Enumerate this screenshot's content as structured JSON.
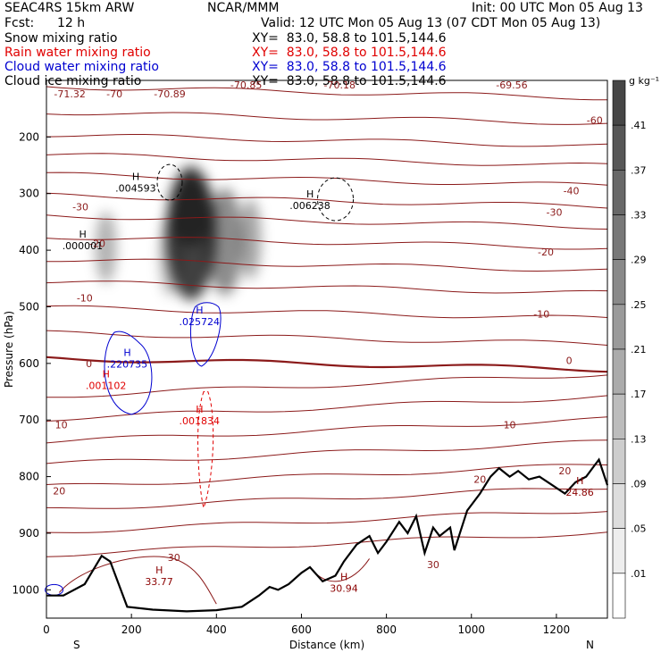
{
  "header": {
    "model": "SEAC4RS 15km ARW",
    "org": "NCAR/MMM",
    "init": "Init: 00 UTC Mon 05 Aug 13",
    "fcst_label": "Fcst:",
    "fcst_value": "12 h",
    "valid": "Valid: 12 UTC Mon 05 Aug 13 (07 CDT Mon 05 Aug 13)",
    "fields": [
      {
        "name": "Snow mixing ratio",
        "color": "#000000"
      },
      {
        "name": "Rain water mixing ratio",
        "color": "#e00000"
      },
      {
        "name": "Cloud water mixing ratio",
        "color": "#0000d0"
      },
      {
        "name": "Cloud ice mixing ratio",
        "color": "#000000"
      }
    ],
    "xy": "XY=  83.0, 58.8 to 101.5,144.6"
  },
  "chart_data": {
    "type": "cross-section",
    "xlabel": "Distance (km)",
    "ylabel": "Pressure (hPa)",
    "xlim": [
      0,
      1320
    ],
    "ylim": [
      1050,
      100
    ],
    "xticks": [
      0,
      200,
      400,
      600,
      800,
      1000,
      1200
    ],
    "yticks": [
      200,
      300,
      400,
      500,
      600,
      700,
      800,
      900,
      1000
    ],
    "x_end_labels": {
      "left": "S",
      "right": "N"
    },
    "colorbar": {
      "unit": "g kg⁻¹",
      "levels": [
        ".41",
        ".37",
        ".33",
        ".29",
        ".25",
        ".21",
        ".17",
        ".13",
        ".09",
        ".05",
        ".01"
      ]
    },
    "temperature_labels": [
      {
        "text": "-71.32",
        "x": 55,
        "p": 124
      },
      {
        "text": "-70",
        "x": 160,
        "p": 124
      },
      {
        "text": "-70.89",
        "x": 290,
        "p": 124
      },
      {
        "text": "-70.85",
        "x": 470,
        "p": 108
      },
      {
        "text": "-70.18",
        "x": 690,
        "p": 108
      },
      {
        "text": "-69.56",
        "x": 1095,
        "p": 108
      },
      {
        "text": "-60",
        "x": 1290,
        "p": 170
      },
      {
        "text": "-40",
        "x": 1235,
        "p": 295
      },
      {
        "text": "-30",
        "x": 80,
        "p": 323
      },
      {
        "text": "-30",
        "x": 1195,
        "p": 333
      },
      {
        "text": "-20",
        "x": 120,
        "p": 388
      },
      {
        "text": "-20",
        "x": 1175,
        "p": 403
      },
      {
        "text": "-10",
        "x": 90,
        "p": 484
      },
      {
        "text": "-10",
        "x": 1165,
        "p": 513
      },
      {
        "text": "0",
        "x": 100,
        "p": 600
      },
      {
        "text": "0",
        "x": 1230,
        "p": 595
      },
      {
        "text": "10",
        "x": 35,
        "p": 708
      },
      {
        "text": "10",
        "x": 1090,
        "p": 708
      },
      {
        "text": "20",
        "x": 30,
        "p": 825
      },
      {
        "text": "20",
        "x": 1020,
        "p": 805
      },
      {
        "text": "20",
        "x": 1220,
        "p": 790
      },
      {
        "text": "30",
        "x": 300,
        "p": 943
      },
      {
        "text": "30",
        "x": 910,
        "p": 955
      }
    ],
    "extrema": [
      {
        "text": ".004593",
        "x": 210,
        "p": 298,
        "color": "#000000"
      },
      {
        "text": ".006238",
        "x": 620,
        "p": 329,
        "color": "#000000"
      },
      {
        "text": ".000001",
        "x": 85,
        "p": 400,
        "color": "#000000"
      },
      {
        "text": ".025724",
        "x": 360,
        "p": 534,
        "color": "#0000d0"
      },
      {
        "text": ".220735",
        "x": 190,
        "p": 609,
        "color": "#0000d0"
      },
      {
        "text": ".001102",
        "x": 140,
        "p": 647,
        "color": "#e00000"
      },
      {
        "text": ".001834",
        "x": 360,
        "p": 709,
        "color": "#e00000"
      },
      {
        "text": "33.77",
        "x": 265,
        "p": 993,
        "color": "#8b0000"
      },
      {
        "text": "30.94",
        "x": 700,
        "p": 1005,
        "color": "#8b0000"
      },
      {
        "text": "24.86",
        "x": 1255,
        "p": 835,
        "color": "#8b0000"
      }
    ],
    "terrain": [
      [
        0,
        1010
      ],
      [
        40,
        1010
      ],
      [
        90,
        990
      ],
      [
        130,
        940
      ],
      [
        150,
        950
      ],
      [
        190,
        1030
      ],
      [
        250,
        1035
      ],
      [
        330,
        1038
      ],
      [
        400,
        1036
      ],
      [
        460,
        1030
      ],
      [
        500,
        1010
      ],
      [
        525,
        995
      ],
      [
        545,
        1000
      ],
      [
        570,
        990
      ],
      [
        600,
        970
      ],
      [
        620,
        960
      ],
      [
        650,
        985
      ],
      [
        680,
        975
      ],
      [
        700,
        950
      ],
      [
        730,
        920
      ],
      [
        760,
        905
      ],
      [
        780,
        935
      ],
      [
        800,
        915
      ],
      [
        830,
        880
      ],
      [
        850,
        900
      ],
      [
        870,
        870
      ],
      [
        890,
        935
      ],
      [
        910,
        890
      ],
      [
        925,
        905
      ],
      [
        950,
        890
      ],
      [
        960,
        930
      ],
      [
        990,
        860
      ],
      [
        1020,
        830
      ],
      [
        1045,
        800
      ],
      [
        1065,
        785
      ],
      [
        1090,
        800
      ],
      [
        1110,
        790
      ],
      [
        1135,
        805
      ],
      [
        1160,
        800
      ],
      [
        1190,
        815
      ],
      [
        1220,
        830
      ],
      [
        1245,
        810
      ],
      [
        1270,
        800
      ],
      [
        1290,
        780
      ],
      [
        1300,
        770
      ],
      [
        1320,
        815
      ]
    ]
  }
}
